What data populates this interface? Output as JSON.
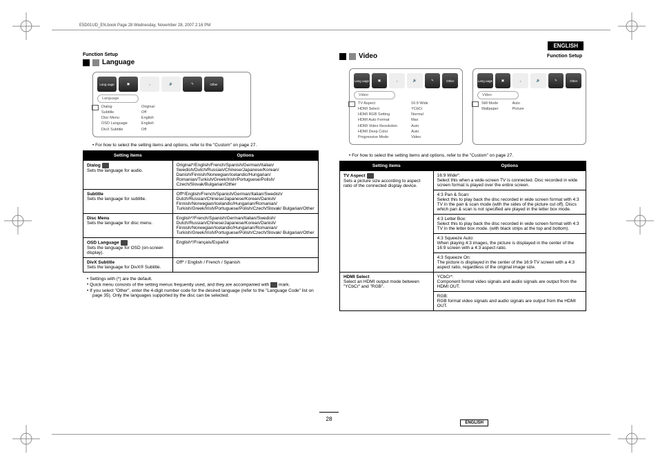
{
  "header": {
    "meta": "E5D01UD_EN.book  Page 28  Wednesday, November 28, 2007  2:16 PM",
    "english_tag": "ENGLISH",
    "function_setup": "Function Setup"
  },
  "left": {
    "title": "Language",
    "tabs": [
      "Lang\nuage",
      "",
      "",
      "",
      "",
      "Other"
    ],
    "menu_label": "Language",
    "menu_items": [
      [
        "Dialog",
        "Original"
      ],
      [
        "Subtitle",
        "Off"
      ],
      [
        "Disc Menu",
        "English"
      ],
      [
        "OSD Language",
        "English"
      ],
      [
        "DivX Subtitle",
        "Off"
      ]
    ],
    "note": "• For how to select the setting items and options, refer to the \"Custom\" on page 27.",
    "table_head": [
      "Setting items",
      "Options"
    ],
    "rows": [
      {
        "name": "Dialog",
        "quick": true,
        "desc": "Sets the language for audio.",
        "opt": "Original*/English/French/Spanish/German/Italian/ Swedish/Dutch/Russian/Chinese/Japanese/Korean/ Danish/Finnish/Norwegian/Icelandic/Hungarian/ Romanian/Turkish/Greek/Irish/Portuguese/Polish/ Czech/Slovak/Bulgarian/Other"
      },
      {
        "name": "Subtitle",
        "desc": "Sets the language for subtitle.",
        "opt": "Off*/English/French/Spanish/German/Italian/Swedish/ Dutch/Russian/Chinese/Japanese/Korean/Danish/ Finnish/Norwegian/Icelandic/Hungarian/Romanian/ Turkish/Greek/Irish/Portuguese/Polish/Czech/Slovak/ Bulgarian/Other"
      },
      {
        "name": "Disc Menu",
        "desc": "Sets the language for disc menu.",
        "opt": "English*/French/Spanish/German/Italian/Swedish/ Dutch/Russian/Chinese/Japanese/Korean/Danish/ Finnish/Norwegian/Icelandic/Hungarian/Romanian/ Turkish/Greek/Irish/Portuguese/Polish/Czech/Slovak/ Bulgarian/Other"
      },
      {
        "name": "OSD Language",
        "quick": true,
        "desc": "Sets the language for OSD (on-screen display).",
        "opt": "English*/Français/Español"
      },
      {
        "name": "DivX Subtitle",
        "desc": "Sets the language for DivX® Subtitle.",
        "opt": "Off* / English / French / Spanish"
      }
    ],
    "footnotes": [
      "Settings with (*) are the default.",
      "Quick menu consists of the setting menus frequently used, and they are accompanied with          mark.",
      "If you select \"Other\", enter the 4-digit number code for the desired language (refer to the \"Language Code\" list on page 35). Only the languages supported by the disc can be selected."
    ]
  },
  "right": {
    "title": "Video",
    "panel1_label": "Video",
    "panel1_items": [
      [
        "TV Aspect",
        "16:9 Wide"
      ],
      [
        "HDMI Select",
        "YCbCr"
      ],
      [
        "HDMI RGB Setting",
        "Normal"
      ],
      [
        "HDMI Auto Format",
        "Max"
      ],
      [
        "HDMI Video Resolution",
        "Auto"
      ],
      [
        "HDMI Deep Color",
        "Auto"
      ],
      [
        "Progressive Mode",
        "Video"
      ]
    ],
    "panel2_label": "Video",
    "panel2_items": [
      [
        "Still Mode",
        "Auto"
      ],
      [
        "Wallpaper",
        "Picture"
      ]
    ],
    "note": "• For how to select the setting items and options, refer to the \"Custom\" on page 27.",
    "table_head": [
      "Setting items",
      "Options"
    ],
    "rows": [
      {
        "name": "TV Aspect",
        "quick": true,
        "desc": "Sets a picture size according to aspect ratio of the connected display device.",
        "opts": [
          {
            "h": "16:9 Wide*:",
            "b": "Select this when a wide-screen TV is connected. Disc recorded in wide screen format is played over the entire screen."
          },
          {
            "h": "4:3 Pan & Scan:",
            "b": "Select this to play back the disc recorded in wide screen format with 4:3 TV in the pan & scan mode (with the sides of the picture cut off). Discs which pan & scan is not specified are played in the letter box mode."
          },
          {
            "h": "4:3 Letter Box:",
            "b": "Select this to play back the disc recorded in wide screen format with 4:3 TV in the letter box mode. (with black strips at the top and bottom)."
          },
          {
            "h": "4:3 Squeeze Auto:",
            "b": "When playing 4:3 images, the picture is displayed in the center of the 16:9 screen with a 4:3 aspect ratio."
          },
          {
            "h": "4:3 Squeeze On:",
            "b": "The picture is displayed in the center of the 16:9 TV screen with a 4:3 aspect ratio, regardless of the original image size."
          }
        ]
      },
      {
        "name": "HDMI Select",
        "desc": "Select an HDMI output mode between \"YCbCr\" and \"RGB\".",
        "opts": [
          {
            "h": "YCbCr*:",
            "b": "Component format video signals and audio signals are output from the HDMI OUT."
          },
          {
            "h": "RGB:",
            "b": "RGB format video signals and audio signals are output from the HDMI OUT."
          }
        ]
      }
    ]
  },
  "footer": {
    "page": "28",
    "english": "ENGLISH"
  }
}
